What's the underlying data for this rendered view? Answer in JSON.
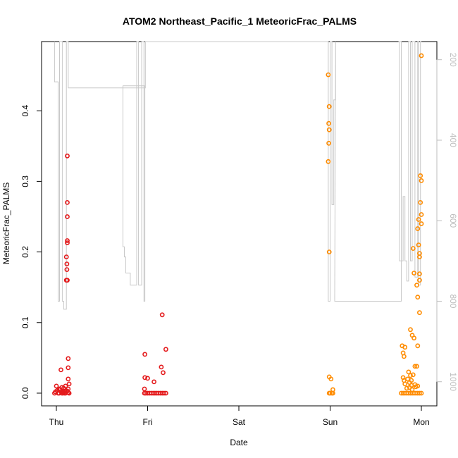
{
  "chart_data": {
    "type": "scatter",
    "title": "ATOM2 Northeast_Pacific_1 MeteoricFrac_PALMS",
    "xlabel": "Date",
    "ylabel": "MeteoricFrac_PALMS",
    "x_ticks": [
      "Thu",
      "Fri",
      "Sat",
      "Sun",
      "Mon"
    ],
    "x_range_days": [
      -0.24,
      4.17
    ],
    "ylim": [
      -0.018,
      0.498
    ],
    "y_ticks": [
      "0.0",
      "0.1",
      "0.2",
      "0.3",
      "0.4"
    ],
    "y2_ticks": [
      "200",
      "400",
      "600",
      "800",
      "1000"
    ],
    "y2_range": [
      155,
      1060
    ],
    "y2_reversed": true,
    "grid": false,
    "series": [
      {
        "color": "#e41a1c",
        "points": [
          [
            -0.02,
            0
          ],
          [
            0.0,
            0.01
          ],
          [
            0.02,
            0
          ],
          [
            0.04,
            0.005
          ],
          [
            0.05,
            0.033
          ],
          [
            0.06,
            0.008
          ],
          [
            0.07,
            0
          ],
          [
            0.08,
            0.007
          ],
          [
            0.09,
            0.003
          ],
          [
            0.1,
            0.01
          ],
          [
            0.1,
            0
          ],
          [
            0.11,
            0.16
          ],
          [
            0.11,
            0.193
          ],
          [
            0.115,
            0.175
          ],
          [
            0.115,
            0.183
          ],
          [
            0.12,
            0.216
          ],
          [
            0.12,
            0.213
          ],
          [
            0.12,
            0.27
          ],
          [
            0.12,
            0.25
          ],
          [
            0.12,
            0.336
          ],
          [
            0.12,
            0.16
          ],
          [
            0.13,
            0.02
          ],
          [
            0.13,
            0.036
          ],
          [
            0.13,
            0.049
          ],
          [
            0.13,
            0.006
          ],
          [
            0.14,
            0.013
          ],
          [
            0.14,
            0
          ],
          [
            0.03,
            0
          ],
          [
            0.06,
            0
          ],
          [
            0.09,
            0
          ],
          [
            -0.01,
            0.002
          ],
          [
            0.01,
            0.004
          ],
          [
            0.03,
            0.006
          ],
          [
            0.05,
            0.002
          ],
          [
            0.08,
            0.001
          ],
          [
            0.12,
            0.003
          ],
          [
            0.13,
            0.001
          ],
          [
            0.965,
            0
          ],
          [
            0.98,
            0
          ],
          [
            1.0,
            0
          ],
          [
            1.02,
            0
          ],
          [
            1.04,
            0
          ],
          [
            1.06,
            0
          ],
          [
            1.08,
            0
          ],
          [
            1.1,
            0
          ],
          [
            1.12,
            0
          ],
          [
            1.14,
            0
          ],
          [
            1.16,
            0
          ],
          [
            1.18,
            0
          ],
          [
            1.2,
            0
          ],
          [
            0.97,
            0.055
          ],
          [
            0.97,
            0.022
          ],
          [
            0.965,
            0.006
          ],
          [
            1.0,
            0.021
          ],
          [
            1.07,
            0.016
          ],
          [
            1.16,
            0.111
          ],
          [
            1.15,
            0.037
          ],
          [
            1.17,
            0.029
          ],
          [
            1.2,
            0.062
          ]
        ]
      },
      {
        "color": "#ff8c00",
        "points": [
          [
            2.98,
            0.451
          ],
          [
            2.99,
            0.406
          ],
          [
            2.985,
            0.382
          ],
          [
            2.99,
            0.373
          ],
          [
            2.985,
            0.354
          ],
          [
            2.98,
            0.328
          ],
          [
            2.99,
            0.2
          ],
          [
            2.99,
            0.023
          ],
          [
            3.01,
            0.02
          ],
          [
            3.03,
            0.005
          ],
          [
            2.99,
            0
          ],
          [
            3.0,
            0
          ],
          [
            3.02,
            0
          ],
          [
            3.03,
            0
          ],
          [
            3.78,
            0
          ],
          [
            3.8,
            0
          ],
          [
            3.82,
            0
          ],
          [
            3.84,
            0
          ],
          [
            3.86,
            0
          ],
          [
            3.88,
            0
          ],
          [
            3.9,
            0
          ],
          [
            3.92,
            0
          ],
          [
            3.94,
            0
          ],
          [
            3.96,
            0
          ],
          [
            3.98,
            0
          ],
          [
            4.0,
            0
          ],
          [
            3.79,
            0.067
          ],
          [
            3.8,
            0.057
          ],
          [
            3.81,
            0.052
          ],
          [
            3.82,
            0.065
          ],
          [
            3.8,
            0.022
          ],
          [
            3.81,
            0.018
          ],
          [
            3.82,
            0.013
          ],
          [
            3.84,
            0.007
          ],
          [
            3.86,
            0.03
          ],
          [
            3.87,
            0.015
          ],
          [
            3.88,
            0.025
          ],
          [
            3.89,
            0.011
          ],
          [
            3.9,
            0.005
          ],
          [
            3.91,
            0.026
          ],
          [
            3.88,
            0.09
          ],
          [
            3.9,
            0.082
          ],
          [
            3.92,
            0.078
          ],
          [
            3.93,
            0.038
          ],
          [
            3.95,
            0.038
          ],
          [
            3.96,
            0.067
          ],
          [
            3.94,
            0.009
          ],
          [
            3.96,
            0.01
          ],
          [
            3.91,
            0.205
          ],
          [
            3.92,
            0.17
          ],
          [
            3.95,
            0.153
          ],
          [
            3.96,
            0.136
          ],
          [
            3.96,
            0.233
          ],
          [
            3.97,
            0.246
          ],
          [
            3.97,
            0.21
          ],
          [
            3.98,
            0.193
          ],
          [
            3.98,
            0.198
          ],
          [
            3.98,
            0.169
          ],
          [
            3.98,
            0.16
          ],
          [
            3.99,
            0.308
          ],
          [
            4.0,
            0.301
          ],
          [
            3.99,
            0.27
          ],
          [
            4.0,
            0.253
          ],
          [
            4.0,
            0.24
          ],
          [
            3.98,
            0.114
          ],
          [
            4.0,
            0.478
          ],
          [
            3.85,
            0.02
          ],
          [
            3.87,
            0.008
          ],
          [
            3.89,
            0.018
          ],
          [
            3.93,
            0.012
          ]
        ]
      }
    ],
    "altitude_trace": {
      "color": "#c8c8c8",
      "axis": "right",
      "points": [
        [
          -0.02,
          155
        ],
        [
          -0.02,
          255
        ],
        [
          0.02,
          255
        ],
        [
          0.02,
          800
        ],
        [
          0.035,
          800
        ],
        [
          0.035,
          155
        ],
        [
          0.065,
          155
        ],
        [
          0.065,
          800
        ],
        [
          0.08,
          800
        ],
        [
          0.08,
          820
        ],
        [
          0.11,
          820
        ],
        [
          0.11,
          155
        ],
        [
          0.13,
          155
        ],
        [
          0.13,
          255
        ],
        [
          0.13,
          270
        ],
        [
          0.97,
          270
        ],
        [
          0.97,
          265
        ],
        [
          0.73,
          265
        ],
        [
          0.73,
          665
        ],
        [
          0.745,
          665
        ],
        [
          0.745,
          690
        ],
        [
          0.76,
          690
        ],
        [
          0.76,
          730
        ],
        [
          0.81,
          730
        ],
        [
          0.81,
          760
        ],
        [
          0.88,
          760
        ],
        [
          0.88,
          155
        ],
        [
          0.9,
          155
        ],
        [
          0.9,
          760
        ],
        [
          0.935,
          760
        ],
        [
          0.935,
          155
        ],
        [
          0.96,
          155
        ],
        [
          0.96,
          800
        ],
        [
          0.97,
          800
        ],
        [
          0.97,
          270
        ],
        [
          0.97,
          270
        ],
        [
          0.975,
          270
        ],
        [
          0.975,
          155
        ],
        [
          2.98,
          155
        ],
        [
          2.98,
          800
        ],
        [
          3.0,
          800
        ],
        [
          3.0,
          155
        ],
        [
          3.02,
          155
        ],
        [
          3.02,
          560
        ],
        [
          3.04,
          560
        ],
        [
          3.04,
          300
        ],
        [
          3.06,
          300
        ],
        [
          3.06,
          155
        ],
        [
          3.05,
          800
        ],
        [
          3.78,
          800
        ],
        [
          3.78,
          155
        ],
        [
          3.75,
          155
        ],
        [
          3.75,
          155
        ],
        [
          3.76,
          155
        ],
        [
          3.76,
          700
        ],
        [
          3.8,
          700
        ],
        [
          3.8,
          540
        ],
        [
          3.82,
          540
        ],
        [
          3.82,
          700
        ],
        [
          3.84,
          700
        ],
        [
          3.84,
          750
        ],
        [
          3.86,
          750
        ],
        [
          3.86,
          155
        ],
        [
          3.88,
          155
        ],
        [
          3.88,
          700
        ],
        [
          3.9,
          700
        ],
        [
          3.9,
          155
        ],
        [
          3.93,
          155
        ],
        [
          3.93,
          740
        ],
        [
          3.96,
          740
        ],
        [
          3.96,
          155
        ],
        [
          3.97,
          155
        ],
        [
          3.97,
          760
        ],
        [
          3.99,
          760
        ],
        [
          3.99,
          155
        ],
        [
          4.0,
          155
        ]
      ]
    }
  }
}
